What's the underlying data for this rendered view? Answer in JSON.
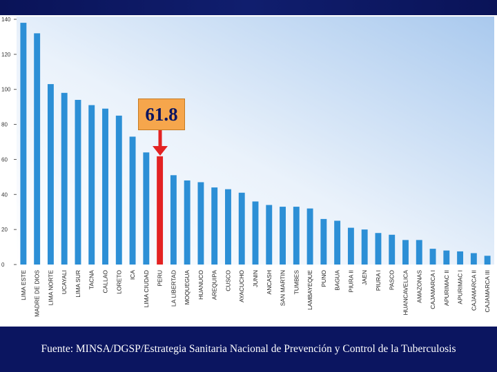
{
  "chart_data": {
    "type": "bar",
    "categories": [
      "LIMA ESTE",
      "MADRE DE DIOS",
      "LIMA NORTE",
      "UCAYALI",
      "LIMA SUR",
      "TACNA",
      "CALLAO",
      "LORETO",
      "ICA",
      "LIMA CIUDAD",
      "PERU",
      "LA LIBERTAD",
      "MOQUEGUA",
      "HUANUCO",
      "AREQUIPA",
      "CUSCO",
      "AYACUCHO",
      "JUNIN",
      "ANCASH",
      "SAN MARTIN",
      "TUMBES",
      "LAMBAYEQUE",
      "PUNO",
      "BAGUA",
      "PIURA II",
      "JAEN",
      "PIURA I",
      "PASCO",
      "HUANCAVELICA",
      "AMAZONAS",
      "CAJAMARCA I",
      "APURIMAC II",
      "APURIMAC I",
      "CAJAMARCA II",
      "CAJAMARCA III"
    ],
    "values": [
      138,
      132,
      103,
      98,
      94,
      91,
      89,
      85,
      73,
      64,
      61.8,
      51,
      48,
      47,
      44,
      43,
      41,
      36,
      34,
      33,
      33,
      32,
      26,
      25,
      21,
      20,
      18,
      17,
      14,
      14,
      9,
      8,
      7.5,
      6.5,
      5
    ],
    "highlight_category": "PERU",
    "ylim": [
      0,
      140
    ],
    "yticks": [
      0,
      20,
      40,
      60,
      80,
      100,
      120,
      140
    ],
    "grid": false,
    "colors": {
      "bar": "#2c8fd6",
      "highlight_bar": "#e32222",
      "arrow": "#e32222",
      "callout_bg": "#f6a64c"
    }
  },
  "callout": {
    "value_label": "61.8"
  },
  "footer": {
    "source": "Fuente: MINSA/DGSP/Estrategia Sanitaria Nacional de Prevención y Control de la Tuberculosis"
  }
}
